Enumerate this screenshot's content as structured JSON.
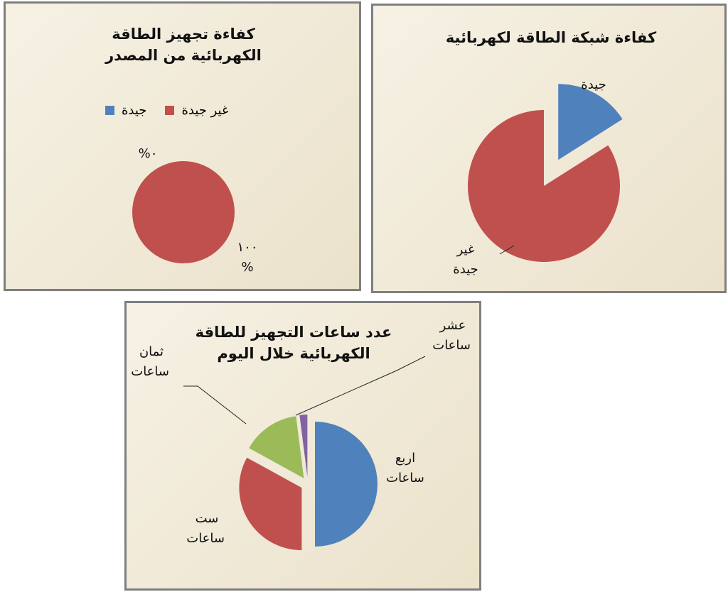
{
  "chart_data": [
    {
      "type": "pie",
      "title": "كفاءة تجهيز الطاقة الكهربائية من المصدر",
      "categories": [
        "جيدة",
        "غير جيدة"
      ],
      "values": [
        0,
        100
      ],
      "value_labels": [
        "٠%",
        "١٠٠ %"
      ],
      "colors": [
        "#4f81bd",
        "#c0504d"
      ],
      "legend": "top"
    },
    {
      "type": "pie",
      "title": "كفاءة شبكة الطاقة لكهربائية",
      "categories": [
        "جيدة",
        "غير جيدة"
      ],
      "values": [
        16,
        84
      ],
      "colors": [
        "#4f81bd",
        "#c0504d"
      ]
    },
    {
      "type": "pie",
      "title": "عدد ساعات التجهيز للطاقة الكهربائية خلال اليوم",
      "categories": [
        "اربع ساعات",
        "ست ساعات",
        "ثمان ساعات",
        "عشر ساعات"
      ],
      "values": [
        50,
        33,
        15,
        2
      ],
      "colors": [
        "#4f81bd",
        "#c0504d",
        "#9bbb59",
        "#8064a2"
      ]
    }
  ]
}
